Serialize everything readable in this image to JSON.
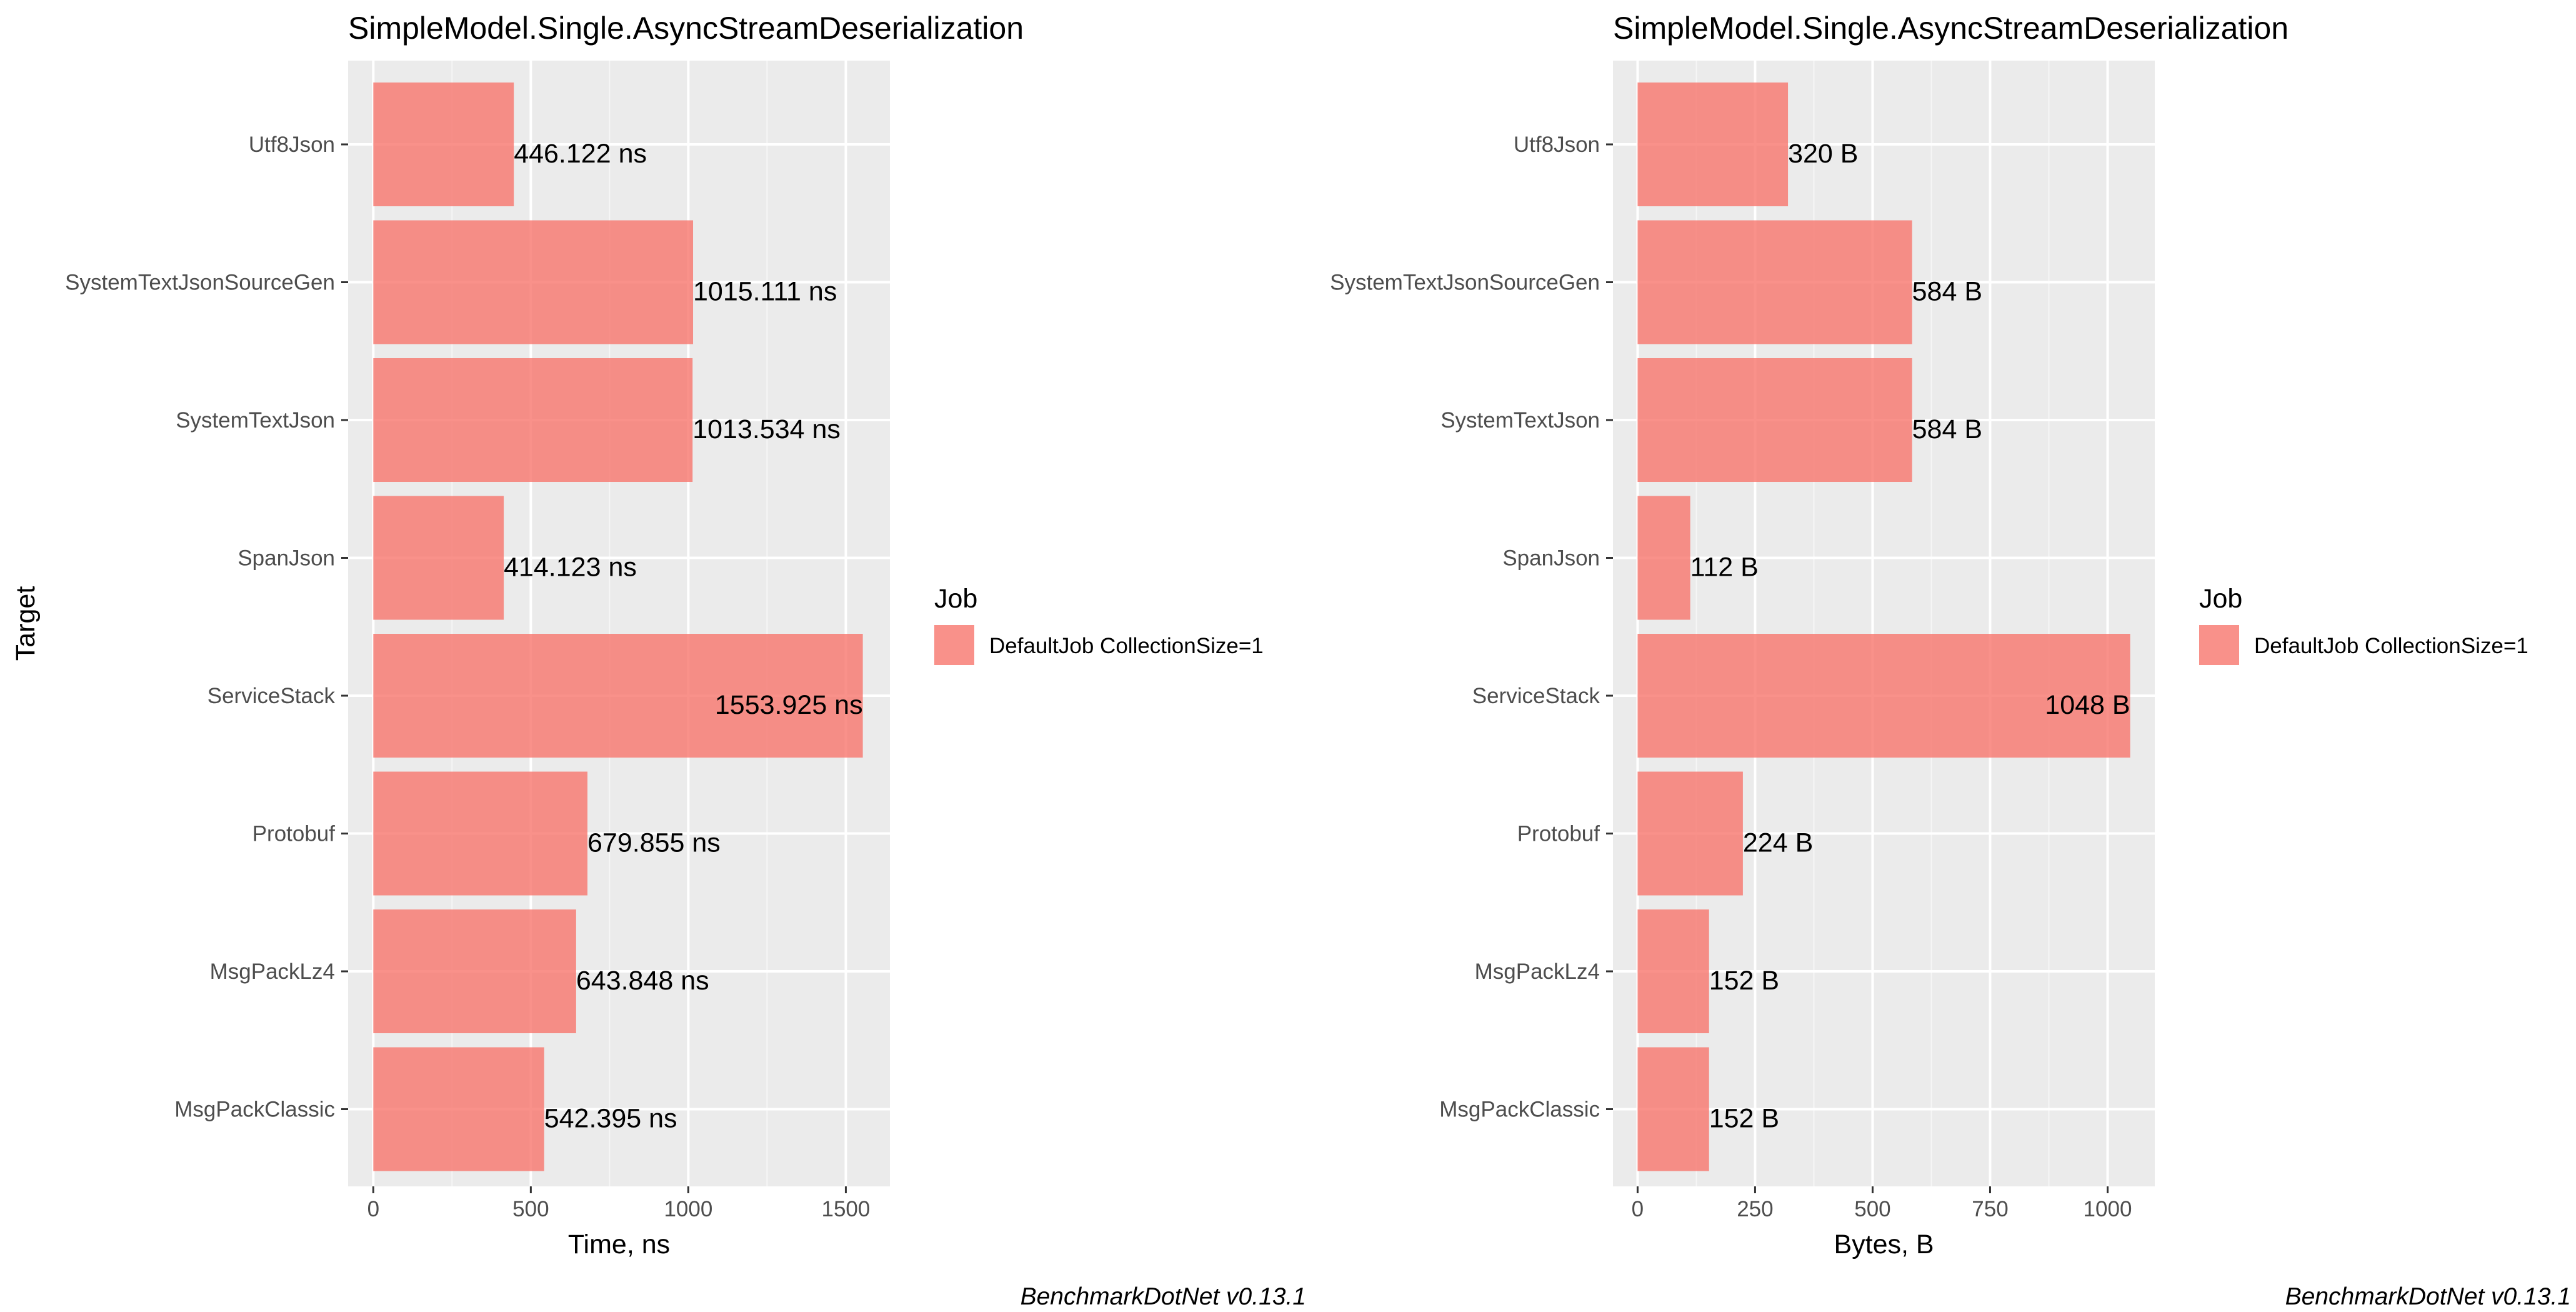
{
  "y_axis_title": "Target",
  "caption": "BenchmarkDotNet v0.13.1",
  "legend": {
    "title": "Job",
    "entry": "DefaultJob CollectionSize=1"
  },
  "colors": {
    "bar": "#f8766d",
    "panel": "#ebebeb",
    "grid_major": "#ffffff"
  },
  "chart_data": [
    {
      "type": "bar",
      "orientation": "horizontal",
      "title": "SimpleModel.Single.AsyncStreamDeserialization",
      "xlabel": "Time, ns",
      "ylabel": "Target",
      "categories": [
        "Utf8Json",
        "SystemTextJsonSourceGen",
        "SystemTextJson",
        "SpanJson",
        "ServiceStack",
        "Protobuf",
        "MsgPackLz4",
        "MsgPackClassic"
      ],
      "values": [
        446.122,
        1015.111,
        1013.534,
        414.123,
        1553.925,
        679.855,
        643.848,
        542.395
      ],
      "labels": [
        "446.122 ns",
        "1015.111 ns",
        "1013.534 ns",
        "414.123 ns",
        "1553.925 ns",
        "679.855 ns",
        "643.848 ns",
        "542.395 ns"
      ],
      "xlim": [
        -80,
        1640
      ],
      "xticks": [
        0,
        500,
        1000,
        1500
      ],
      "xtick_labels": [
        "0",
        "500",
        "1000",
        "1500"
      ],
      "legend_position": "right",
      "grid": true
    },
    {
      "type": "bar",
      "orientation": "horizontal",
      "title": "SimpleModel.Single.AsyncStreamDeserialization",
      "xlabel": "Bytes, B",
      "ylabel": "",
      "categories": [
        "Utf8Json",
        "SystemTextJsonSourceGen",
        "SystemTextJson",
        "SpanJson",
        "ServiceStack",
        "Protobuf",
        "MsgPackLz4",
        "MsgPackClassic"
      ],
      "values": [
        320,
        584,
        584,
        112,
        1048,
        224,
        152,
        152
      ],
      "labels": [
        "320 B",
        "584 B",
        "584 B",
        "112 B",
        "1048 B",
        "224 B",
        "152 B",
        "152 B"
      ],
      "xlim": [
        -52.4,
        1100.4
      ],
      "xticks": [
        0,
        250,
        500,
        750,
        1000
      ],
      "xtick_labels": [
        "0",
        "250",
        "500",
        "750",
        "1000"
      ],
      "legend_position": "right",
      "grid": true
    }
  ]
}
